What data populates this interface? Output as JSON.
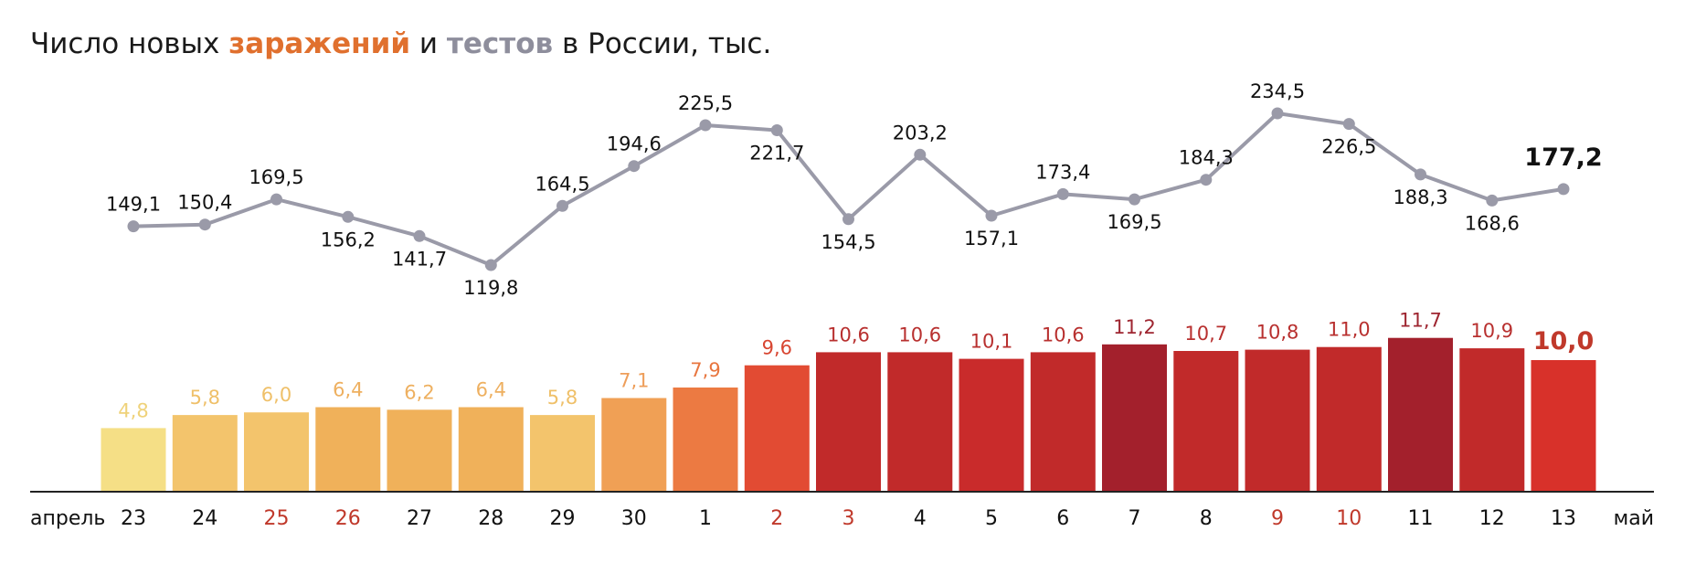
{
  "title": {
    "part1": "Число новых ",
    "infections_word": "заражений",
    "part2": " и ",
    "tests_word": "тестов",
    "part3": " в России, тыс."
  },
  "colors": {
    "tests_line": "#9a9aa8",
    "weekend_label": "#c0392b",
    "last_value": "#c0392b"
  },
  "chart_data": {
    "type": "bar",
    "month_start_label": "апрель",
    "month_end_label": "май",
    "categories": [
      "23",
      "24",
      "25",
      "26",
      "27",
      "28",
      "29",
      "30",
      "1",
      "2",
      "3",
      "4",
      "5",
      "6",
      "7",
      "8",
      "9",
      "10",
      "11",
      "12",
      "13"
    ],
    "highlight_categories": [
      "25",
      "26",
      "2",
      "3",
      "9",
      "10"
    ],
    "series": [
      {
        "role": "infections",
        "values": [
          4.8,
          5.8,
          6.0,
          6.4,
          6.2,
          6.4,
          5.8,
          7.1,
          7.9,
          9.6,
          10.6,
          10.6,
          10.1,
          10.6,
          11.2,
          10.7,
          10.8,
          11.0,
          11.7,
          10.9,
          10.0
        ],
        "labels": [
          "4,8",
          "5,8",
          "6,0",
          "6,4",
          "6,2",
          "6,4",
          "5,8",
          "7,1",
          "7,9",
          "9,6",
          "10,6",
          "10,6",
          "10,1",
          "10,6",
          "11,2",
          "10,7",
          "10,8",
          "11,0",
          "11,7",
          "10,9",
          "10,0"
        ],
        "colors": [
          "#f5df86",
          "#f3c46c",
          "#f3c46c",
          "#f0b15a",
          "#f0b15a",
          "#f0b15a",
          "#f3c46c",
          "#f0a055",
          "#ec7a42",
          "#e24b33",
          "#c12a2a",
          "#c12a2a",
          "#c92b2b",
          "#c12a2a",
          "#a3202c",
          "#c12a2a",
          "#c12a2a",
          "#c12a2a",
          "#a3202c",
          "#c12a2a",
          "#d8312a"
        ],
        "label_colors": [
          "#efd27a",
          "#efc069",
          "#efc069",
          "#eeb060",
          "#eeb060",
          "#eeb060",
          "#efc069",
          "#ee9e5a",
          "#e8763f",
          "#d84632",
          "#b8302f",
          "#b8302f",
          "#b8302f",
          "#b8302f",
          "#9e2530",
          "#b8302f",
          "#b8302f",
          "#b8302f",
          "#9e2530",
          "#b8302f",
          "#c0392b"
        ]
      },
      {
        "role": "tests",
        "type": "line",
        "values": [
          149.1,
          150.4,
          169.5,
          156.2,
          141.7,
          119.8,
          164.5,
          194.6,
          225.5,
          221.7,
          154.5,
          203.2,
          157.1,
          173.4,
          169.5,
          184.3,
          234.5,
          226.5,
          188.3,
          168.6,
          177.2
        ],
        "labels": [
          "149,1",
          "150,4",
          "169,5",
          "156,2",
          "141,7",
          "119,8",
          "164,5",
          "194,6",
          "225,5",
          "221,7",
          "154,5",
          "203,2",
          "157,1",
          "173,4",
          "169,5",
          "184,3",
          "234,5",
          "226,5",
          "188,3",
          "168,6",
          "177,2"
        ],
        "label_positions": [
          "above",
          "above",
          "above",
          "below",
          "below",
          "below",
          "above",
          "above",
          "above",
          "below",
          "below",
          "above",
          "below",
          "above",
          "below",
          "above",
          "above",
          "below",
          "below",
          "below",
          "above"
        ]
      }
    ]
  }
}
